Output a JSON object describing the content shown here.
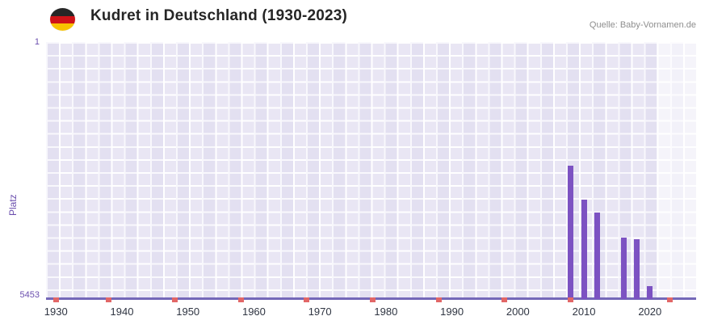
{
  "header": {
    "title": "Kudret in Deutschland (1930-2023)",
    "source": "Quelle: Baby-Vornamen.de",
    "flag_icon": "german-flag-icon",
    "flag_colors": [
      "#262626",
      "#cf1318",
      "#f8c300"
    ]
  },
  "chart_data": {
    "type": "bar",
    "title": "Kudret in Deutschland (1930-2023)",
    "ylabel": "Platz",
    "y_axis": {
      "min": 1,
      "max": 5453,
      "inverted": true,
      "top_label": "1",
      "bottom_label": "5453"
    },
    "x_domain": [
      1928.5,
      2027
    ],
    "x_ticks": [
      1930,
      1940,
      1950,
      1960,
      1970,
      1980,
      1990,
      2000,
      2010,
      2020
    ],
    "bars": [
      {
        "year": 2008,
        "rank": 2620
      },
      {
        "year": 2010,
        "rank": 3340
      },
      {
        "year": 2012,
        "rank": 3620
      },
      {
        "year": 2016,
        "rank": 4150
      },
      {
        "year": 2018,
        "rank": 4190
      },
      {
        "year": 2020,
        "rank": 5180
      }
    ],
    "no_rank_marker_years": [
      1930,
      1938,
      1948,
      1958,
      1968,
      1978,
      1988,
      1998,
      2008,
      2023
    ],
    "highlight_band": {
      "from": 2021,
      "to": 2027
    },
    "grid": true,
    "legend": false,
    "colors": {
      "bar": "#7c52c2",
      "marker": "#e26767",
      "baseline": "#7468b8",
      "band": "rgba(255,255,255,0.55)",
      "axis_text": "#6b4fae",
      "tick_text": "#2f3542",
      "plot_background": "#e9e6f4"
    }
  }
}
